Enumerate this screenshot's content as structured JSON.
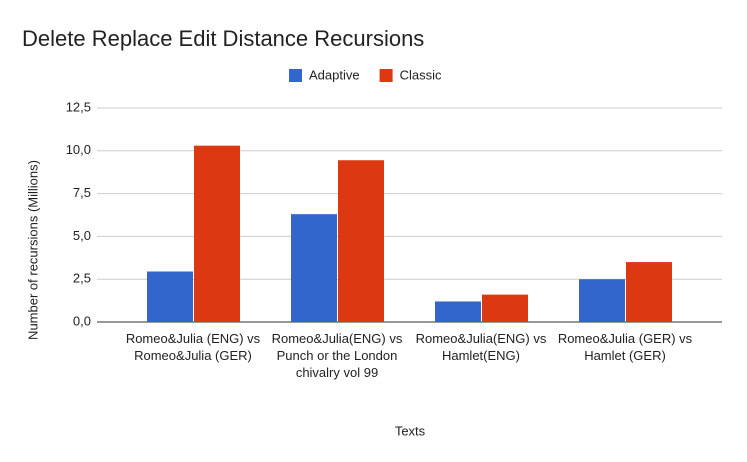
{
  "chart_data": {
    "type": "bar",
    "title": "Delete Replace Edit Distance Recursions",
    "x_label": "Texts",
    "y_label": "Number of recursions (Millions)",
    "categories": [
      "Romeo&Julia (ENG) vs Romeo&Julia (GER)",
      "Romeo&Julia(ENG) vs Punch or the London chivalry vol 99",
      "Romeo&Julia(ENG) vs Hamlet(ENG)",
      "Romeo&Julia (GER) vs Hamlet (GER)"
    ],
    "series": [
      {
        "name": "Adaptive",
        "color": "#3366cc",
        "values": [
          2.95,
          6.3,
          1.2,
          2.5
        ]
      },
      {
        "name": "Classic",
        "color": "#dc3912",
        "values": [
          10.3,
          9.45,
          1.6,
          3.5
        ]
      }
    ],
    "ylim": [
      0,
      12.5
    ],
    "yticks": [
      {
        "value": 0,
        "label": "0,0"
      },
      {
        "value": 2.5,
        "label": "2,5"
      },
      {
        "value": 5,
        "label": "5,0"
      },
      {
        "value": 7.5,
        "label": "7,5"
      },
      {
        "value": 10,
        "label": "10,0"
      },
      {
        "value": 12.5,
        "label": "12,5"
      }
    ],
    "grid": true,
    "legend": "top"
  }
}
